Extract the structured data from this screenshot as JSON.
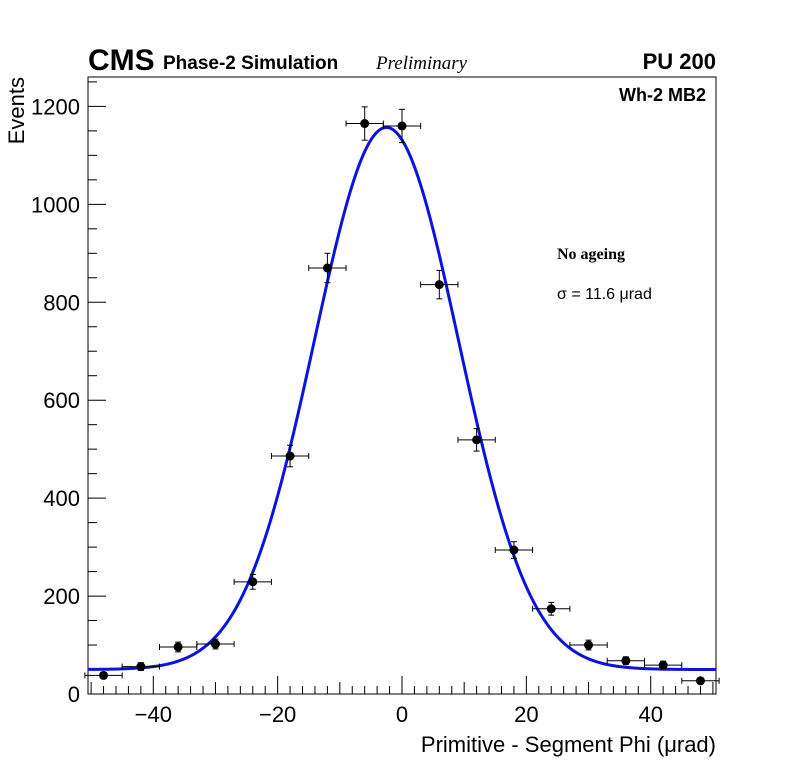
{
  "header": {
    "experiment": "CMS",
    "simulation": "Phase-2 Simulation",
    "status": "Preliminary",
    "pileup": "PU 200",
    "category": "Wh-2 MB2"
  },
  "legend": {
    "title": "No ageing",
    "sigma_text": "σ = 11.6  μrad"
  },
  "chart_data": {
    "type": "scatter",
    "title": "",
    "xlabel": "Primitive - Segment Phi (μrad)",
    "ylabel": "Events",
    "xlim": [
      -50.5,
      50.5
    ],
    "ylim": [
      0,
      1260
    ],
    "x_ticks": [
      -40,
      -20,
      0,
      20,
      40
    ],
    "x_tick_labels": [
      "−40",
      "−20",
      "0",
      "20",
      "40"
    ],
    "y_ticks": [
      0,
      200,
      400,
      600,
      800,
      1000,
      1200
    ],
    "y_tick_labels": [
      "0",
      "200",
      "400",
      "600",
      "800",
      "1000",
      "1200"
    ],
    "series": [
      {
        "name": "data",
        "bin_half_width": 3,
        "points": [
          {
            "x": -48,
            "y": 38,
            "err": 6
          },
          {
            "x": -42,
            "y": 56,
            "err": 8
          },
          {
            "x": -36,
            "y": 96,
            "err": 10
          },
          {
            "x": -30,
            "y": 102,
            "err": 10
          },
          {
            "x": -24,
            "y": 229,
            "err": 15
          },
          {
            "x": -18,
            "y": 486,
            "err": 22
          },
          {
            "x": -12,
            "y": 870,
            "err": 30
          },
          {
            "x": -6,
            "y": 1165,
            "err": 34
          },
          {
            "x": 0,
            "y": 1160,
            "err": 34
          },
          {
            "x": 6,
            "y": 836,
            "err": 29
          },
          {
            "x": 12,
            "y": 519,
            "err": 23
          },
          {
            "x": 18,
            "y": 294,
            "err": 17
          },
          {
            "x": 24,
            "y": 174,
            "err": 13
          },
          {
            "x": 30,
            "y": 100,
            "err": 10
          },
          {
            "x": 36,
            "y": 68,
            "err": 8
          },
          {
            "x": 42,
            "y": 59,
            "err": 8
          },
          {
            "x": 48,
            "y": 27,
            "err": 5
          }
        ]
      },
      {
        "name": "fit",
        "type": "line",
        "color": "#0a14dc",
        "function": "gaussian_plus_constant",
        "constant": 50,
        "amplitude": 1107,
        "mean": -2.5,
        "sigma": 11.6
      }
    ]
  }
}
